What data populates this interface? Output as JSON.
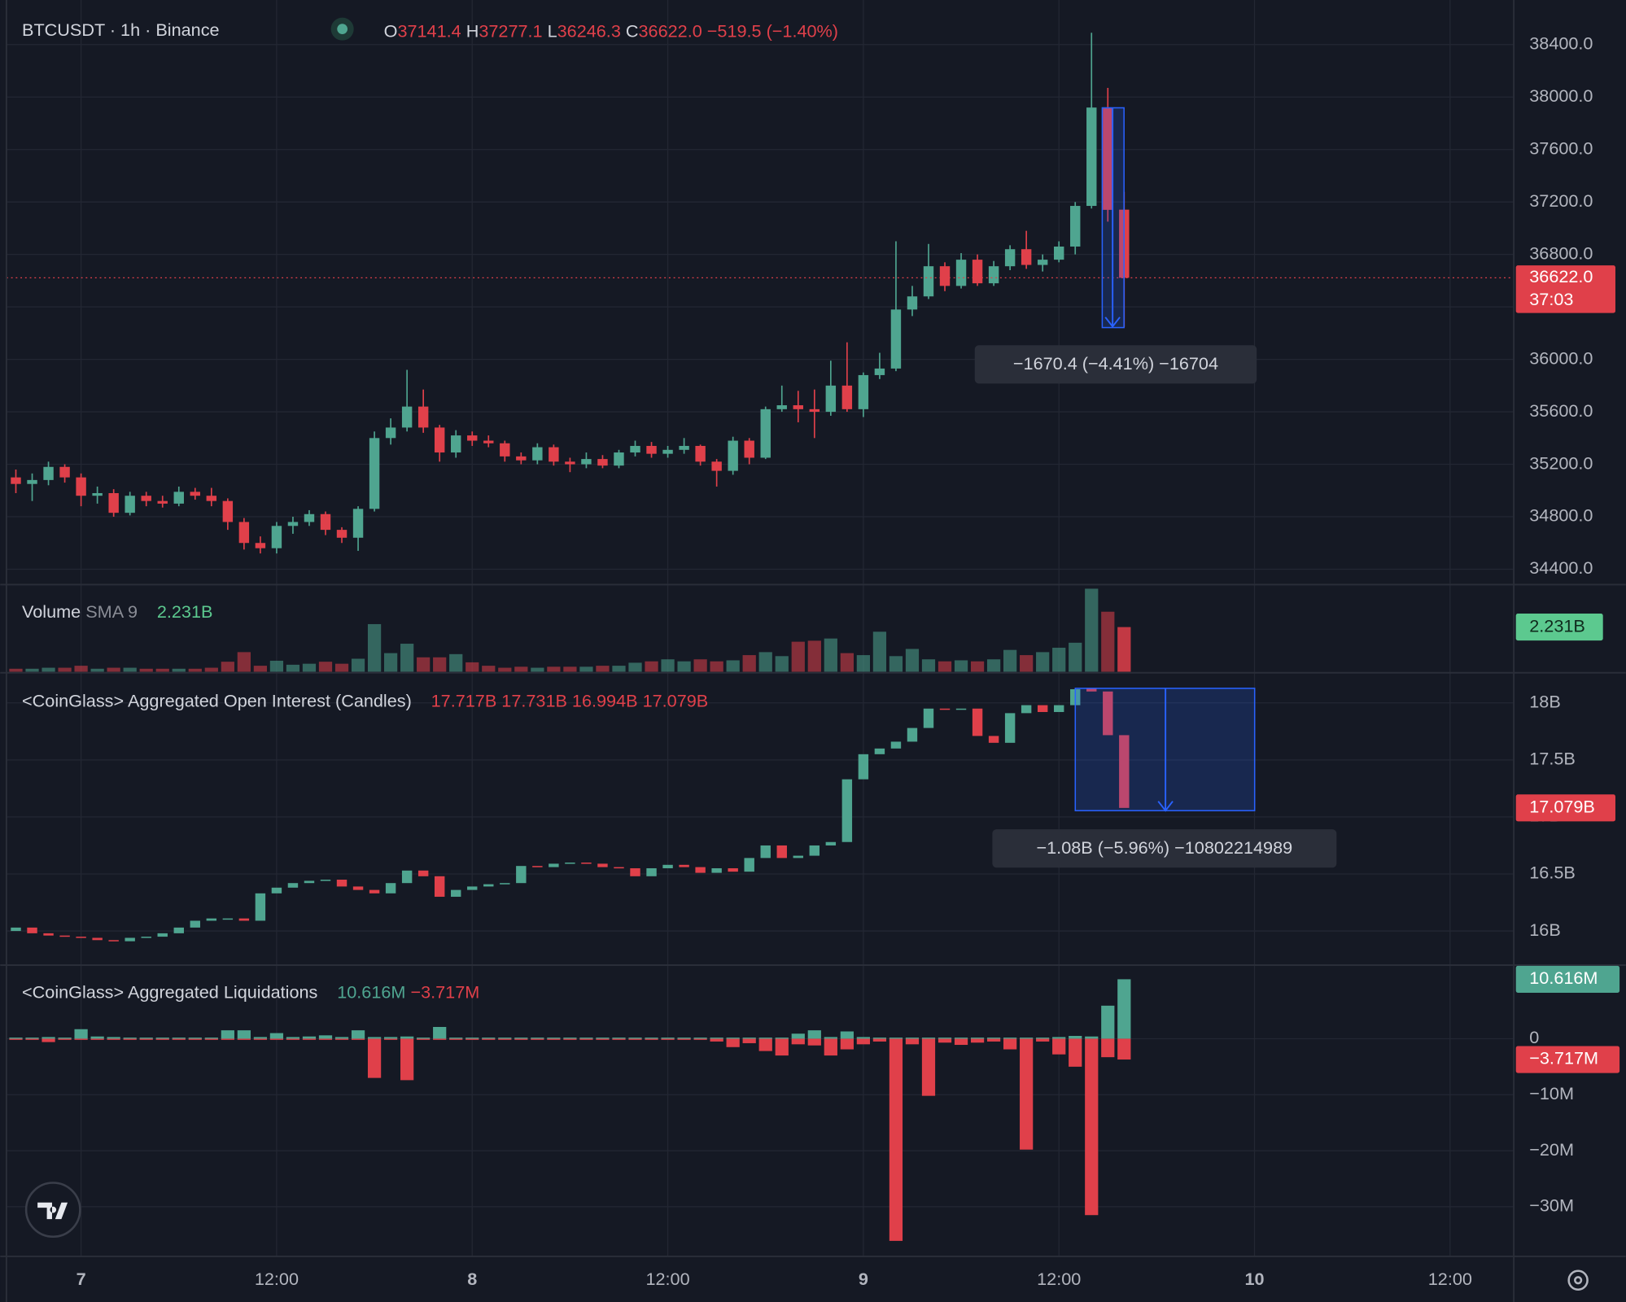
{
  "header": {
    "symbol": "BTCUSDT · 1h · Binance",
    "ohlc": [
      {
        "key": "O",
        "value": "37141.4"
      },
      {
        "key": "H",
        "value": "37277.1"
      },
      {
        "key": "L",
        "value": "36246.3"
      },
      {
        "key": "C",
        "value": "36622.0"
      }
    ],
    "change": "−519.5 (−1.40%)"
  },
  "chart_data": [
    {
      "type": "candlestick",
      "up_color": "#4fa590",
      "down_color": "#e0404a",
      "x": [
        -4,
        -3,
        -2,
        -1,
        0,
        1,
        2,
        3,
        4,
        5,
        6,
        7,
        8,
        9,
        10,
        11,
        12,
        13,
        14,
        15,
        16,
        17,
        18,
        19,
        20,
        21,
        22,
        23,
        24,
        25,
        26,
        27,
        28,
        29,
        30,
        31,
        32,
        33,
        34,
        35,
        36,
        37,
        38,
        39,
        40,
        41,
        42,
        43,
        44,
        45,
        46,
        47,
        48,
        49,
        50,
        51,
        52,
        53,
        54,
        55,
        56,
        57,
        58,
        59,
        60,
        61,
        62,
        63,
        64
      ],
      "xlim": [
        -4.96,
        87.91
      ],
      "xticks": [
        {
          "value": 0,
          "label": "7"
        },
        {
          "value": 12,
          "label": "12:00"
        },
        {
          "value": 24,
          "label": "8"
        },
        {
          "value": 36,
          "label": "12:00"
        },
        {
          "value": 48,
          "label": "9"
        },
        {
          "value": 60,
          "label": "12:00"
        },
        {
          "value": 72,
          "label": "10"
        },
        {
          "value": 84,
          "label": "12:00"
        }
      ],
      "open": [
        35100,
        35050,
        35080,
        35180,
        35100,
        34960,
        34980,
        34830,
        34960,
        34920,
        34900,
        34990,
        34960,
        34920,
        34760,
        34600,
        34560,
        34730,
        34760,
        34820,
        34700,
        34640,
        34860,
        35400,
        35480,
        35640,
        35480,
        35290,
        35420,
        35380,
        35360,
        35260,
        35230,
        35330,
        35220,
        35200,
        35240,
        35190,
        35290,
        35340,
        35280,
        35310,
        35340,
        35220,
        35150,
        35380,
        35250,
        35620,
        35650,
        35620,
        35600,
        35800,
        35620,
        35880,
        35930,
        36380,
        36480,
        36710,
        36560,
        36760,
        36580,
        36710,
        36840,
        36720,
        36760,
        36860,
        37170,
        37920,
        37141.4
      ],
      "high": [
        35160,
        35130,
        35220,
        35200,
        35130,
        35030,
        35010,
        34990,
        34990,
        34960,
        35030,
        35020,
        35020,
        34940,
        34790,
        34650,
        34760,
        34800,
        34850,
        34840,
        34720,
        34880,
        35450,
        35550,
        35920,
        35770,
        35500,
        35460,
        35450,
        35420,
        35380,
        35290,
        35360,
        35350,
        35250,
        35290,
        35270,
        35310,
        35380,
        35370,
        35340,
        35400,
        35350,
        35240,
        35410,
        35400,
        35640,
        35800,
        35760,
        35770,
        35990,
        36130,
        35900,
        36050,
        36900,
        36560,
        36880,
        36740,
        36810,
        36800,
        36750,
        36870,
        36980,
        36800,
        36900,
        37200,
        38490,
        38070,
        37277.1
      ],
      "low": [
        34980,
        34920,
        35040,
        35060,
        34880,
        34900,
        34800,
        34810,
        34880,
        34870,
        34880,
        34930,
        34880,
        34700,
        34550,
        34520,
        34520,
        34670,
        34730,
        34660,
        34600,
        34540,
        34840,
        35350,
        35450,
        35440,
        35220,
        35250,
        35340,
        35330,
        35220,
        35200,
        35200,
        35190,
        35140,
        35170,
        35170,
        35170,
        35260,
        35250,
        35250,
        35280,
        35190,
        35030,
        35120,
        35200,
        35240,
        35600,
        35520,
        35400,
        35570,
        35600,
        35560,
        35850,
        35910,
        36330,
        36460,
        36520,
        36540,
        36560,
        36560,
        36680,
        36690,
        36670,
        36740,
        36800,
        37150,
        37050,
        36246.3
      ],
      "close": [
        35050,
        35080,
        35180,
        35100,
        34960,
        34980,
        34830,
        34960,
        34920,
        34900,
        34990,
        34960,
        34920,
        34760,
        34600,
        34560,
        34730,
        34760,
        34820,
        34700,
        34640,
        34860,
        35400,
        35480,
        35640,
        35480,
        35290,
        35420,
        35380,
        35360,
        35260,
        35230,
        35330,
        35220,
        35200,
        35240,
        35190,
        35290,
        35340,
        35280,
        35310,
        35340,
        35220,
        35150,
        35380,
        35250,
        35620,
        35650,
        35620,
        35600,
        35800,
        35620,
        35880,
        35930,
        36380,
        36480,
        36710,
        36560,
        36760,
        36580,
        36710,
        36840,
        36720,
        36760,
        36860,
        37170,
        37920,
        37140,
        36622
      ],
      "ylim": [
        34290,
        38740
      ],
      "yticks": [
        {
          "value": 34400,
          "label": "34400.0"
        },
        {
          "value": 34800,
          "label": "34800.0"
        },
        {
          "value": 35200,
          "label": "35200.0"
        },
        {
          "value": 35600,
          "label": "35600.0"
        },
        {
          "value": 36000,
          "label": "36000.0"
        },
        {
          "value": 36400,
          "label": "36400.0"
        },
        {
          "value": 36800,
          "label": "36800.0"
        },
        {
          "value": 37200,
          "label": "37200.0"
        },
        {
          "value": 37600,
          "label": "37600.0"
        },
        {
          "value": 38000,
          "label": "38000.0"
        },
        {
          "value": 38400,
          "label": "38400.0"
        }
      ],
      "grid": true,
      "last_price": {
        "value": 36622,
        "label": "36622.0"
      },
      "countdown": "37:03",
      "measure": "−1670.4 (−4.41%) −16704"
    },
    {
      "type": "bar",
      "title": "Volume",
      "indicator": "SMA 9",
      "legend_value": "2.231B",
      "legend_color": "#5cc98f",
      "values": [
        0.15,
        0.15,
        0.2,
        0.2,
        0.3,
        0.15,
        0.2,
        0.2,
        0.15,
        0.15,
        0.15,
        0.15,
        0.2,
        0.5,
        0.98,
        0.3,
        0.55,
        0.35,
        0.4,
        0.5,
        0.4,
        0.65,
        2.38,
        0.93,
        1.4,
        0.72,
        0.72,
        0.88,
        0.47,
        0.3,
        0.2,
        0.25,
        0.2,
        0.25,
        0.25,
        0.25,
        0.3,
        0.3,
        0.45,
        0.52,
        0.62,
        0.52,
        0.62,
        0.52,
        0.57,
        0.83,
        0.98,
        0.78,
        1.5,
        1.55,
        1.66,
        0.93,
        0.83,
        2.0,
        0.78,
        1.14,
        0.62,
        0.52,
        0.57,
        0.52,
        0.62,
        1.09,
        0.83,
        0.98,
        1.2,
        1.45,
        4.15,
        3.0,
        2.231
      ],
      "ylim": [
        0,
        4.3
      ]
    },
    {
      "type": "candlestick",
      "title": "<CoinGlass> Aggregated Open Interest (Candles)",
      "up_color": "#4fa590",
      "down_color": "#e0404a",
      "legend_values": [
        "17.717B",
        "17.731B",
        "16.994B",
        "17.079B"
      ],
      "open": [
        16.0,
        16.03,
        15.98,
        15.96,
        15.95,
        15.94,
        15.92,
        15.91,
        15.94,
        15.95,
        15.98,
        16.03,
        16.09,
        16.11,
        16.11,
        16.09,
        16.33,
        16.38,
        16.42,
        16.44,
        16.45,
        16.39,
        16.36,
        16.33,
        16.42,
        16.53,
        16.48,
        16.3,
        16.36,
        16.39,
        16.41,
        16.42,
        16.57,
        16.56,
        16.59,
        16.6,
        16.59,
        16.56,
        16.55,
        16.48,
        16.55,
        16.58,
        16.56,
        16.51,
        16.55,
        16.52,
        16.64,
        16.75,
        16.64,
        16.66,
        16.75,
        16.78,
        17.33,
        17.55,
        17.6,
        17.66,
        17.78,
        17.95,
        17.94,
        17.95,
        17.71,
        17.65,
        17.91,
        17.98,
        17.92,
        17.98,
        18.13,
        18.1,
        17.717
      ],
      "close": [
        16.03,
        15.98,
        15.96,
        15.95,
        15.94,
        15.92,
        15.91,
        15.94,
        15.95,
        15.98,
        16.03,
        16.09,
        16.11,
        16.11,
        16.09,
        16.33,
        16.38,
        16.42,
        16.44,
        16.45,
        16.39,
        16.36,
        16.33,
        16.42,
        16.53,
        16.48,
        16.3,
        16.36,
        16.39,
        16.41,
        16.42,
        16.57,
        16.56,
        16.59,
        16.6,
        16.59,
        16.56,
        16.55,
        16.48,
        16.55,
        16.58,
        16.56,
        16.51,
        16.55,
        16.52,
        16.64,
        16.75,
        16.64,
        16.66,
        16.75,
        16.78,
        17.33,
        17.55,
        17.6,
        17.66,
        17.78,
        17.95,
        17.94,
        17.95,
        17.71,
        17.65,
        17.91,
        17.98,
        17.92,
        17.98,
        18.12,
        18.1,
        17.717,
        17.079
      ],
      "ylim": [
        15.71,
        18.255
      ],
      "yticks": [
        {
          "value": 16,
          "label": "16B"
        },
        {
          "value": 16.5,
          "label": "16.5B"
        },
        {
          "value": 17,
          "label": "17B"
        },
        {
          "value": 17.5,
          "label": "17.5B"
        },
        {
          "value": 18,
          "label": "18B"
        }
      ],
      "last_value": {
        "value": 17.079,
        "label": "17.079B"
      },
      "measure": "−1.08B (−5.96%) −10802214989"
    },
    {
      "type": "bar",
      "title": "<CoinGlass> Aggregated Liquidations",
      "legend_values": [
        "10.616M",
        "−3.717M"
      ],
      "series": [
        {
          "color": "#4fa590",
          "values": [
            0.2,
            0.2,
            0.3,
            0.2,
            1.7,
            0.4,
            0.3,
            0.2,
            0.2,
            0.2,
            0.2,
            0.2,
            0.2,
            1.5,
            1.5,
            0.3,
            1.0,
            0.3,
            0.4,
            0.6,
            0.3,
            1.5,
            0.3,
            0.3,
            0.4,
            0.2,
            2.1,
            0.2,
            0.2,
            0.2,
            0.2,
            0.2,
            0.2,
            0.2,
            0.2,
            0.2,
            0.2,
            0.2,
            0.2,
            0.2,
            0.2,
            0.2,
            0.2,
            0.2,
            0.2,
            0.2,
            0.2,
            0.2,
            0.9,
            1.5,
            0.3,
            1.3,
            0.3,
            0.2,
            0.2,
            0.2,
            0.2,
            0.2,
            0.2,
            0.2,
            0.2,
            0.2,
            0.2,
            0.2,
            0.3,
            0.5,
            0.4,
            5.9,
            10.616
          ]
        },
        {
          "color": "#e0404a",
          "values": [
            -0.2,
            -0.2,
            -0.6,
            -0.2,
            -0.2,
            -0.2,
            -0.2,
            -0.2,
            -0.2,
            -0.2,
            -0.2,
            -0.2,
            -0.2,
            -0.2,
            -0.2,
            -0.2,
            -0.2,
            -0.2,
            -0.2,
            -0.2,
            -0.2,
            -0.2,
            -7.0,
            -0.2,
            -7.4,
            -0.2,
            -0.2,
            -0.2,
            -0.2,
            -0.2,
            -0.2,
            -0.2,
            -0.2,
            -0.2,
            -0.2,
            -0.2,
            -0.2,
            -0.2,
            -0.2,
            -0.2,
            -0.2,
            -0.2,
            -0.2,
            -0.5,
            -1.5,
            -0.8,
            -2.2,
            -3.0,
            -1.0,
            -1.2,
            -3.0,
            -1.9,
            -1.0,
            -0.5,
            -36.1,
            -1.0,
            -10.2,
            -0.7,
            -1.1,
            -0.7,
            -0.5,
            -1.9,
            -19.8,
            -0.5,
            -2.8,
            -5.0,
            -31.5,
            -3.3,
            -3.717
          ]
        }
      ],
      "ylim": [
        -38.5,
        12.96
      ],
      "yticks": [
        {
          "value": -30,
          "label": "−30M"
        },
        {
          "value": -20,
          "label": "−20M"
        },
        {
          "value": -10,
          "label": "−10M"
        },
        0
      ]
    }
  ]
}
